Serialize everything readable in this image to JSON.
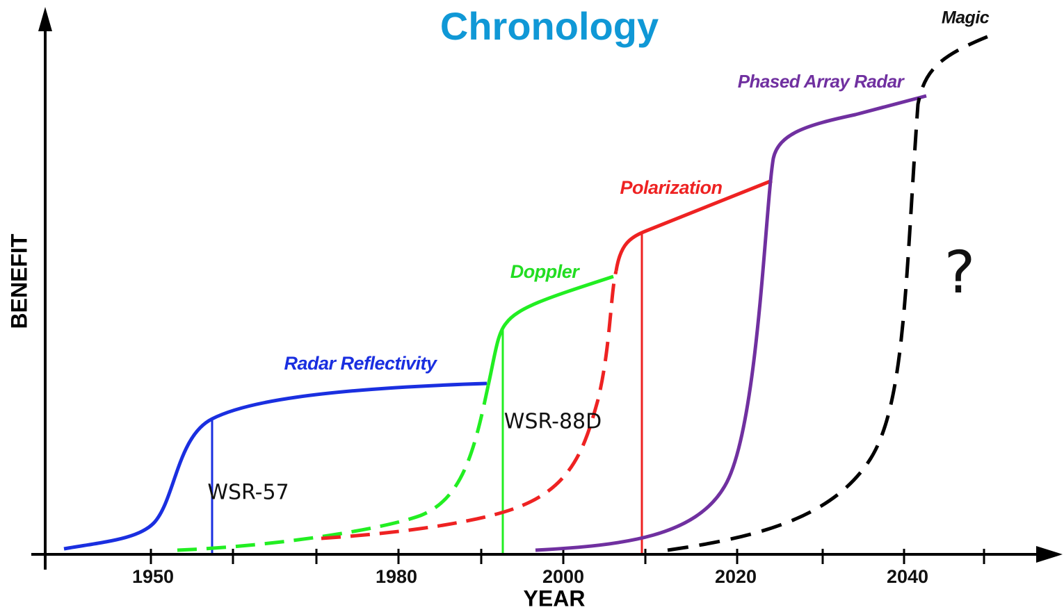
{
  "title": "Chronology",
  "y_axis_label": "BENEFIT",
  "x_axis_label": "YEAR",
  "x_tick_labels": [
    "1950",
    "1980",
    "2000",
    "2020",
    "2040"
  ],
  "curves": [
    {
      "label": "Radar Reflectivity"
    },
    {
      "label": "Doppler"
    },
    {
      "label": "Polarization"
    },
    {
      "label": "Phased Array Radar"
    },
    {
      "label": "Magic"
    }
  ],
  "markers": [
    "WSR-57",
    "WSR-88D"
  ],
  "annotation": "?"
}
